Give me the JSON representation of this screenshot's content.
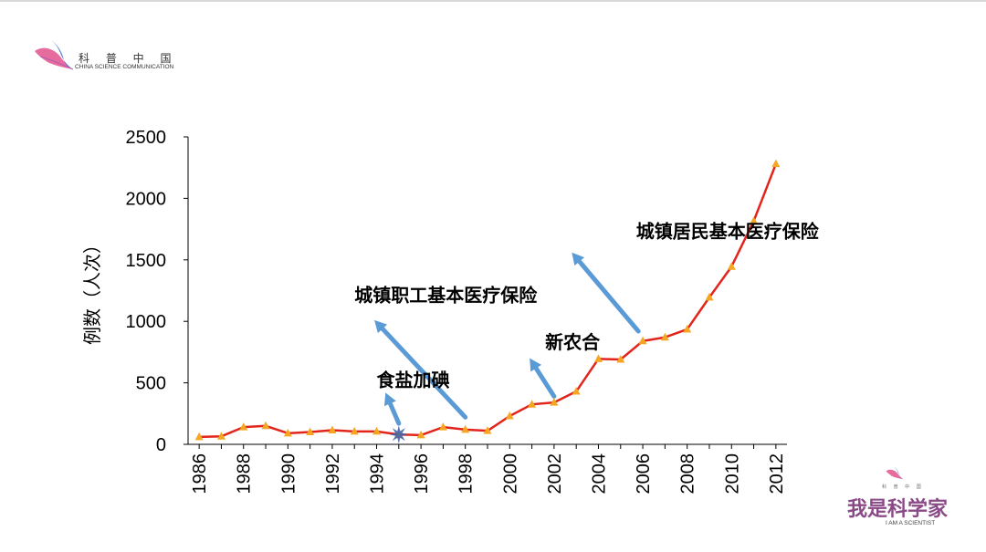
{
  "branding": {
    "top_left_cn": "科 普 中 国",
    "top_left_en": "CHINA SCIENCE COMMUNICATION",
    "bottom_right_cn_small": "科 普 中 国",
    "bottom_right_slogan": "我是科学家",
    "bottom_right_slogan_en": "I AM A SCIENTIST",
    "colors": {
      "logo_pink": "#e0528c",
      "logo_blue": "#4a6fc6",
      "slogan_purple": "#8a4a87"
    }
  },
  "chart_data": {
    "type": "line",
    "title": "",
    "xlabel": "",
    "ylabel": "例数（人次）",
    "ylim": [
      0,
      2500
    ],
    "yticks": [
      0,
      500,
      1000,
      1500,
      2000,
      2500
    ],
    "xticks": [
      1986,
      1988,
      1990,
      1992,
      1994,
      1996,
      1998,
      2000,
      2002,
      2004,
      2006,
      2008,
      2010,
      2012
    ],
    "grid": false,
    "legend": "none",
    "series": [
      {
        "line_color": "#e3241b",
        "marker_color": "#f5a623",
        "x": [
          1986,
          1987,
          1988,
          1989,
          1990,
          1991,
          1992,
          1993,
          1994,
          1995,
          1996,
          1997,
          1998,
          1999,
          2000,
          2001,
          2002,
          2003,
          2004,
          2005,
          2006,
          2007,
          2008,
          2009,
          2010,
          2011,
          2012
        ],
        "y": [
          60,
          65,
          140,
          150,
          90,
          100,
          115,
          105,
          105,
          80,
          75,
          140,
          120,
          110,
          230,
          325,
          340,
          430,
          695,
          690,
          840,
          870,
          935,
          1195,
          1445,
          1815,
          2280
        ]
      }
    ],
    "annotations": [
      {
        "text": "食盐加碘",
        "year": 1995,
        "text_x": 1994,
        "text_y": 470,
        "arrow_from": [
          1995.0,
          170
        ],
        "arrow_to": [
          1994.4,
          420
        ]
      },
      {
        "text": "城镇职工基本医疗保险",
        "year": 1998,
        "text_x": 1993,
        "text_y": 1160,
        "arrow_from": [
          1998.0,
          220
        ],
        "arrow_to": [
          1993.9,
          1010
        ]
      },
      {
        "text": "新农合",
        "year": 2003,
        "text_x": 2001.6,
        "text_y": 780,
        "arrow_from": [
          2002.0,
          390
        ],
        "arrow_to": [
          2000.9,
          700
        ]
      },
      {
        "text": "城镇居民基本医疗保险",
        "year": 2007,
        "text_x": 2005.7,
        "text_y": 1680,
        "arrow_from": [
          2005.8,
          920
        ],
        "arrow_to": [
          2002.8,
          1560
        ]
      }
    ],
    "highlight_marker": {
      "x": 1995,
      "y": 80,
      "color": "#3b5ea8"
    },
    "arrow_color": "#5b9bd5"
  }
}
